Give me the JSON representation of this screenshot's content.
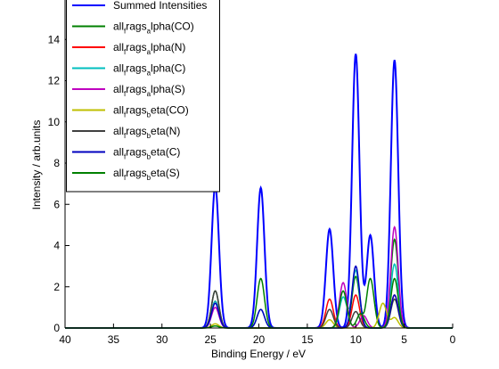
{
  "chart_data": {
    "type": "line",
    "xlabel": "Binding Energy / eV",
    "ylabel": "Intensity / arb.units",
    "xlim": [
      40,
      0
    ],
    "ylim": [
      0,
      14
    ],
    "x_reversed": true,
    "xticks": [
      40,
      35,
      30,
      25,
      20,
      15,
      10,
      5,
      0
    ],
    "yticks": [
      0,
      2,
      4,
      6,
      8,
      10,
      12,
      14
    ],
    "legend_placement": "top-left",
    "series": [
      {
        "name": "Summed Intensities",
        "color": "#0000ff",
        "peaks": [
          {
            "x": 24.5,
            "y": 6.9
          },
          {
            "x": 19.8,
            "y": 6.8
          },
          {
            "x": 12.7,
            "y": 4.8
          },
          {
            "x": 10.0,
            "y": 13.3
          },
          {
            "x": 8.5,
            "y": 4.5
          },
          {
            "x": 6.0,
            "y": 13.0
          }
        ]
      },
      {
        "name": "all_frags_alpha(CO)",
        "color": "#008000",
        "peaks": [
          {
            "x": 24.5,
            "y": 1.8
          },
          {
            "x": 19.8,
            "y": 2.4
          },
          {
            "x": 10.0,
            "y": 2.5
          },
          {
            "x": 8.5,
            "y": 2.4
          },
          {
            "x": 6.0,
            "y": 4.3
          }
        ]
      },
      {
        "name": "all_frags_alpha(N)",
        "color": "#ff0000",
        "peaks": [
          {
            "x": 24.5,
            "y": 1.3
          },
          {
            "x": 12.7,
            "y": 1.4
          },
          {
            "x": 10.0,
            "y": 1.6
          },
          {
            "x": 6.0,
            "y": 1.6
          }
        ]
      },
      {
        "name": "all_frags_alpha(C)",
        "color": "#00bfbf",
        "peaks": [
          {
            "x": 24.5,
            "y": 1.3
          },
          {
            "x": 19.8,
            "y": 0.9
          },
          {
            "x": 11.3,
            "y": 1.5
          },
          {
            "x": 10.0,
            "y": 2.8
          },
          {
            "x": 6.0,
            "y": 3.1
          }
        ]
      },
      {
        "name": "all_frags_alpha(S)",
        "color": "#bf00bf",
        "peaks": [
          {
            "x": 24.5,
            "y": 1.0
          },
          {
            "x": 11.3,
            "y": 2.2
          },
          {
            "x": 9.2,
            "y": 0.6
          },
          {
            "x": 6.0,
            "y": 4.9
          }
        ]
      },
      {
        "name": "all_frags_beta(CO)",
        "color": "#bfbf00",
        "peaks": [
          {
            "x": 24.5,
            "y": 0.2
          },
          {
            "x": 12.7,
            "y": 0.4
          },
          {
            "x": 7.2,
            "y": 1.2
          },
          {
            "x": 6.0,
            "y": 0.5
          }
        ]
      },
      {
        "name": "all_frags_beta(N)",
        "color": "#404040",
        "peaks": [
          {
            "x": 24.5,
            "y": 1.8
          },
          {
            "x": 12.7,
            "y": 0.9
          },
          {
            "x": 10.0,
            "y": 0.8
          },
          {
            "x": 6.0,
            "y": 1.4
          }
        ]
      },
      {
        "name": "all_frags_beta(C)",
        "color": "#0000bf",
        "peaks": [
          {
            "x": 24.5,
            "y": 1.2
          },
          {
            "x": 19.8,
            "y": 0.9
          },
          {
            "x": 10.0,
            "y": 3.0
          },
          {
            "x": 6.0,
            "y": 1.6
          }
        ]
      },
      {
        "name": "all_frags_beta(S)",
        "color": "#008000",
        "peaks": [
          {
            "x": 24.5,
            "y": 0.1
          },
          {
            "x": 11.3,
            "y": 1.8
          },
          {
            "x": 9.5,
            "y": 0.7
          },
          {
            "x": 6.0,
            "y": 2.4
          }
        ]
      }
    ]
  },
  "legend": {
    "entries": [
      {
        "plain": "Summed Intensities"
      },
      {
        "pre": "all",
        "sub1": "f",
        "mid": "rags",
        "sub2": "a",
        "post": "lpha(CO)"
      },
      {
        "pre": "all",
        "sub1": "f",
        "mid": "rags",
        "sub2": "a",
        "post": "lpha(N)"
      },
      {
        "pre": "all",
        "sub1": "f",
        "mid": "rags",
        "sub2": "a",
        "post": "lpha(C)"
      },
      {
        "pre": "all",
        "sub1": "f",
        "mid": "rags",
        "sub2": "a",
        "post": "lpha(S)"
      },
      {
        "pre": "all",
        "sub1": "f",
        "mid": "rags",
        "sub2": "b",
        "post": "eta(CO)"
      },
      {
        "pre": "all",
        "sub1": "f",
        "mid": "rags",
        "sub2": "b",
        "post": "eta(N)"
      },
      {
        "pre": "all",
        "sub1": "f",
        "mid": "rags",
        "sub2": "b",
        "post": "eta(C)"
      },
      {
        "pre": "all",
        "sub1": "f",
        "mid": "rags",
        "sub2": "b",
        "post": "eta(S)"
      }
    ]
  }
}
